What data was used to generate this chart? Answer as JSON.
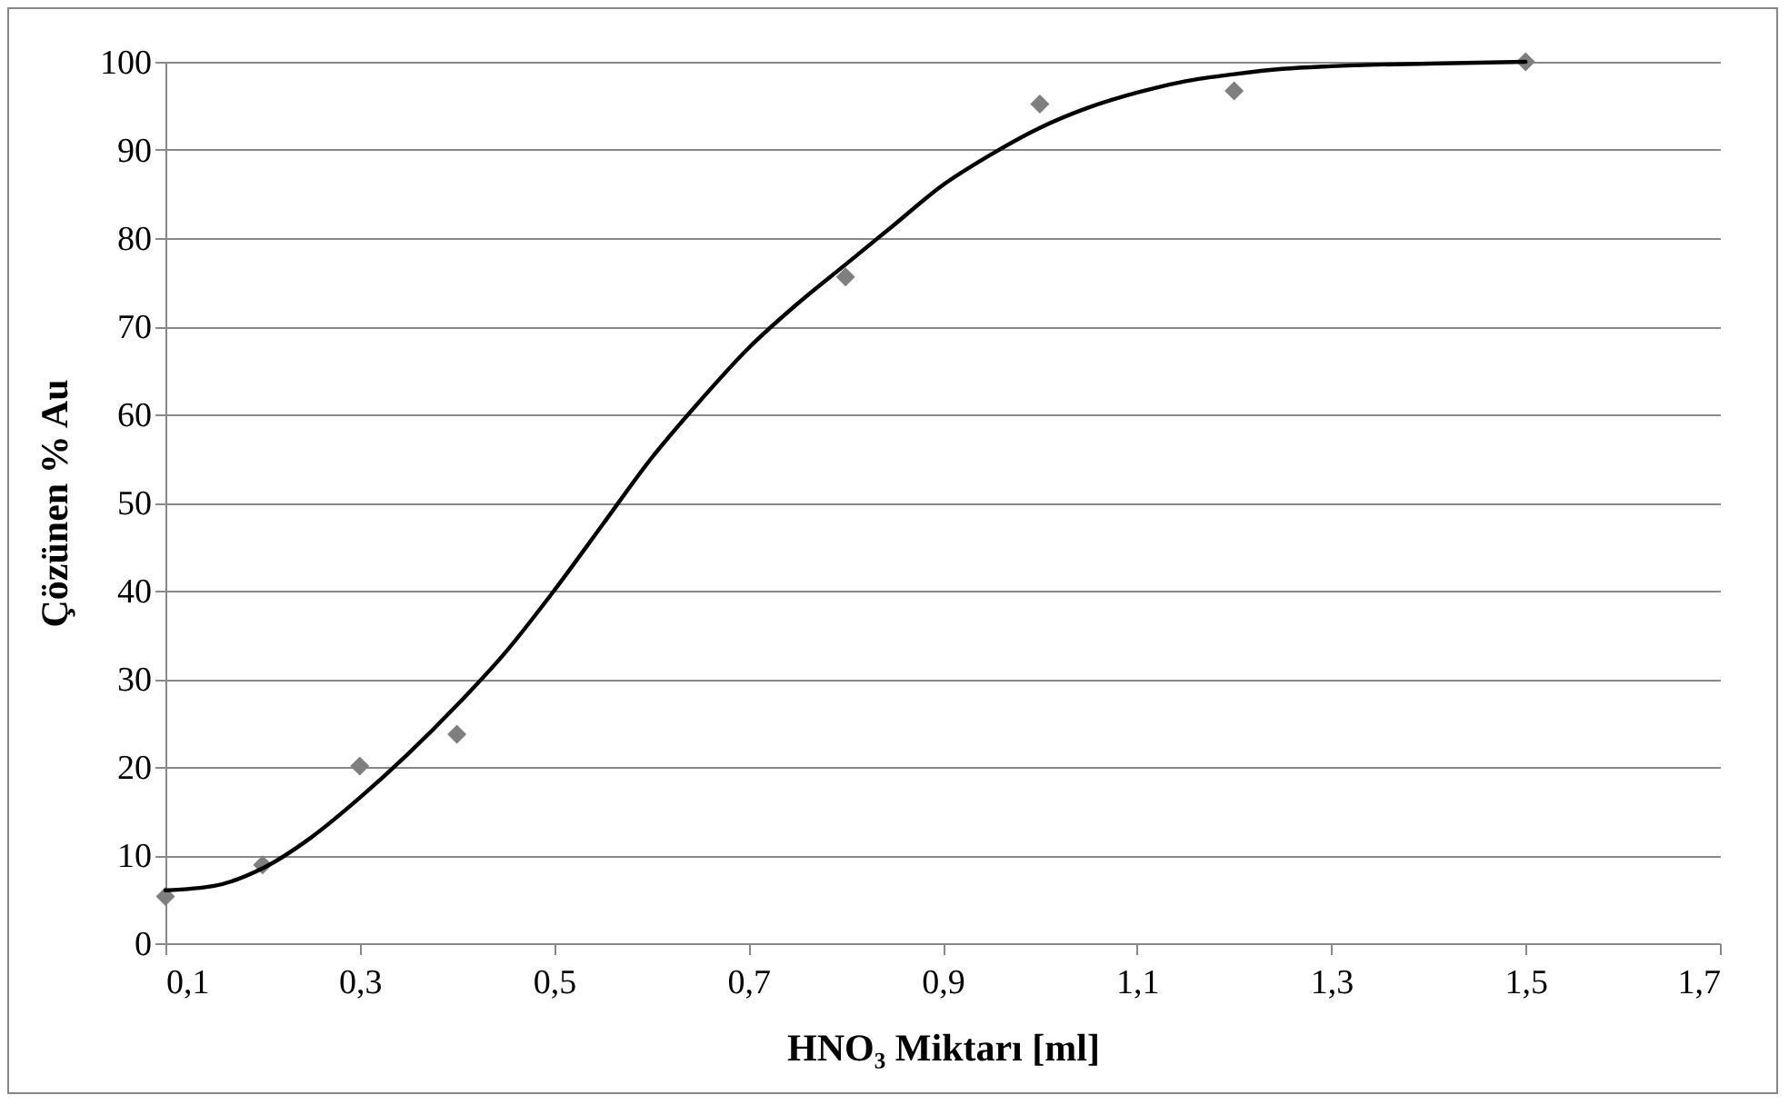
{
  "chart_data": {
    "type": "scatter",
    "xlabel": "HNO₃ Miktarı [ml]",
    "ylabel": "Çözünen % Au",
    "xlim": [
      0.1,
      1.7
    ],
    "xticks": [
      {
        "value": 0.1,
        "label": "0,1"
      },
      {
        "value": 0.3,
        "label": "0,3"
      },
      {
        "value": 0.5,
        "label": "0,5"
      },
      {
        "value": 0.7,
        "label": "0,7"
      },
      {
        "value": 0.9,
        "label": "0,9"
      },
      {
        "value": 1.1,
        "label": "1,1"
      },
      {
        "value": 1.3,
        "label": "1,3"
      },
      {
        "value": 1.5,
        "label": "1,5"
      },
      {
        "value": 1.7,
        "label": "1,7"
      }
    ],
    "ylim": [
      0,
      100
    ],
    "yticks": [
      0,
      10,
      20,
      30,
      40,
      50,
      60,
      70,
      80,
      90,
      100
    ],
    "grid": "y",
    "series": [
      {
        "marker": "diamond",
        "color": "#7f7f7f",
        "x": [
          0.1,
          0.2,
          0.3,
          0.4,
          0.8,
          1.0,
          1.2,
          1.5
        ],
        "values": [
          5.3,
          8.9,
          20.1,
          23.7,
          75.6,
          95.2,
          96.7,
          100
        ]
      },
      {
        "type": "line",
        "marker": "none",
        "line_style": "solid",
        "color": "#000000",
        "x": [
          0.1,
          0.15,
          0.2,
          0.25,
          0.3,
          0.35,
          0.4,
          0.45,
          0.5,
          0.55,
          0.6,
          0.65,
          0.7,
          0.75,
          0.8,
          0.85,
          0.9,
          0.95,
          1.0,
          1.05,
          1.1,
          1.15,
          1.2,
          1.25,
          1.3,
          1.4,
          1.5
        ],
        "values": [
          6,
          6.5,
          8.5,
          12,
          16.5,
          21.5,
          27,
          33,
          40,
          47.5,
          55,
          61.5,
          67.5,
          72.5,
          77,
          81.5,
          86,
          89.5,
          92.5,
          94.8,
          96.5,
          97.8,
          98.6,
          99.2,
          99.5,
          99.8,
          100
        ]
      }
    ]
  }
}
